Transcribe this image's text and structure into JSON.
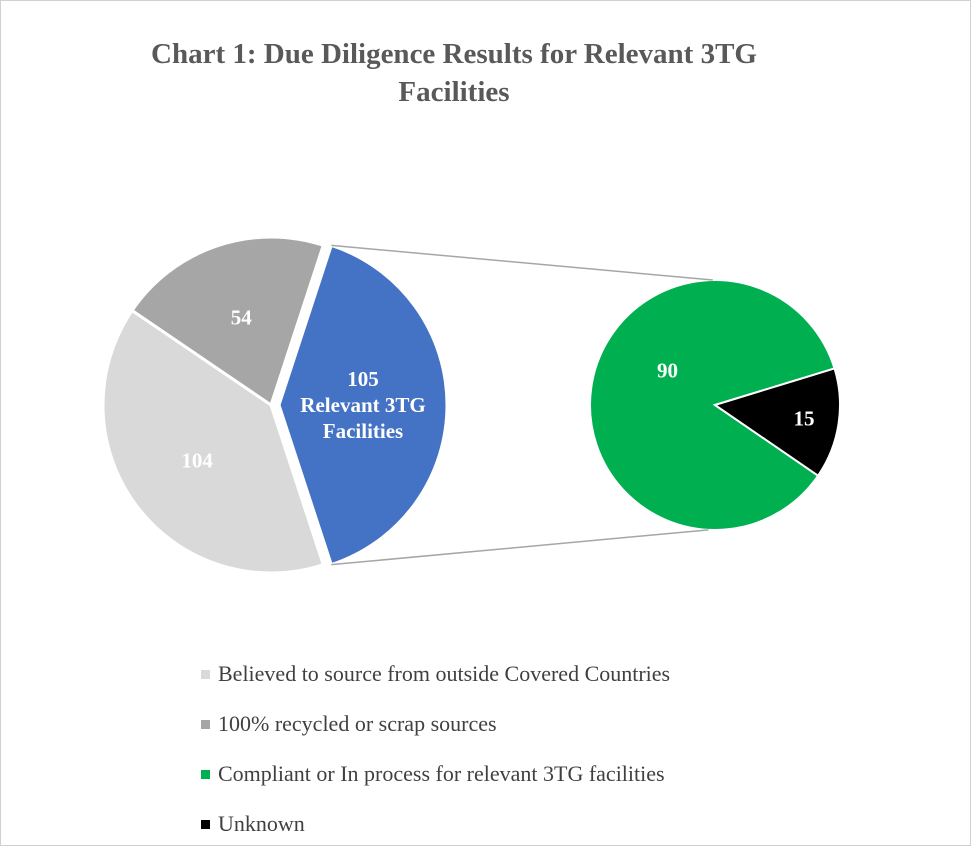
{
  "chart_data": {
    "type": "pie",
    "subtype": "pie-of-pie",
    "title": "Chart 1: Due Diligence Results for Relevant 3TG Facilities",
    "title_lines": [
      "Chart 1: Due Diligence Results for Relevant 3TG",
      "Facilities"
    ],
    "main_pie": {
      "slices": [
        {
          "label": "104",
          "value": 104,
          "legend": "Believed to source from outside Covered Countries",
          "color": "#d9d9d9"
        },
        {
          "label": "54",
          "value": 54,
          "legend": "100% recycled or scrap sources",
          "color": "#a6a6a6"
        },
        {
          "label_lines": [
            "105",
            "Relevant 3TG",
            "Facilities"
          ],
          "value": 105,
          "legend": "",
          "color": "#4472c4",
          "expanded": true
        }
      ]
    },
    "secondary_pie": {
      "slices": [
        {
          "label": "90",
          "value": 90,
          "legend": "Compliant or In process for relevant 3TG facilities",
          "color": "#00b050"
        },
        {
          "label": "15",
          "value": 15,
          "legend": "Unknown",
          "color": "#000000"
        }
      ]
    },
    "legend": {
      "placement": "bottom",
      "items": [
        {
          "label": "Believed to source from outside Covered Countries",
          "color": "#d9d9d9"
        },
        {
          "label": "100% recycled or scrap sources",
          "color": "#a6a6a6"
        },
        {
          "label": "Compliant or In process for relevant 3TG facilities",
          "color": "#00b050"
        },
        {
          "label": "Unknown",
          "color": "#000000"
        }
      ]
    },
    "connector_color": "#a6a6a6"
  }
}
